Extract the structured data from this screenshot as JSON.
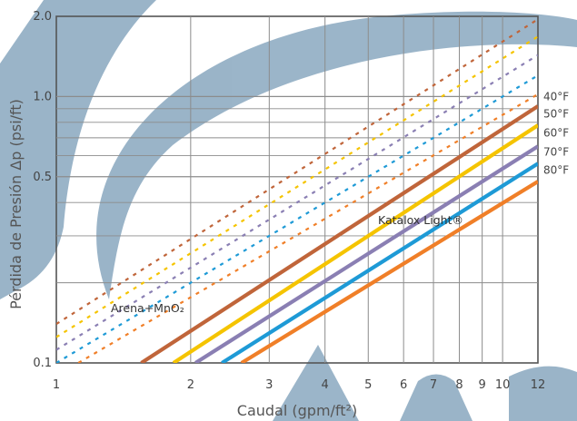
{
  "chart_data": {
    "type": "line",
    "title": "",
    "xlabel": "Caudal (gpm/ft²)",
    "ylabel": "Pérdida de Presión Δp (psi/ft)",
    "x_scale": "log",
    "y_scale": "log",
    "xlim": [
      1,
      12
    ],
    "ylim": [
      0.1,
      2.0
    ],
    "grid": true,
    "x_ticks": [
      1,
      2,
      3,
      4,
      5,
      6,
      7,
      8,
      9,
      10,
      12
    ],
    "x_tick_labels": [
      "1",
      "2",
      "3",
      "4",
      "5",
      "6",
      "7",
      "8",
      "9",
      "10",
      "12"
    ],
    "y_ticks": [
      0.1,
      0.5,
      1.0,
      2.0
    ],
    "y_tick_labels": [
      "0.1",
      "0.5",
      "1.0",
      "2.0"
    ],
    "legend_placement": "right",
    "annotations": {
      "solid": "Katalox Light®",
      "dotted": "Arena+MnO₂"
    },
    "series": [
      {
        "name": "40°F",
        "color": "#c0653a",
        "solid": {
          "x": [
            1.55,
            12
          ],
          "y": [
            0.1,
            0.92
          ]
        },
        "dotted": {
          "x": [
            1,
            12
          ],
          "y": [
            0.14,
            1.95
          ]
        }
      },
      {
        "name": "50°F",
        "color": "#f5c400",
        "solid": {
          "x": [
            1.83,
            12
          ],
          "y": [
            0.1,
            0.78
          ]
        },
        "dotted": {
          "x": [
            1,
            12
          ],
          "y": [
            0.125,
            1.68
          ]
        }
      },
      {
        "name": "60°F",
        "color": "#8a7fb3",
        "solid": {
          "x": [
            2.05,
            12
          ],
          "y": [
            0.1,
            0.65
          ]
        },
        "dotted": {
          "x": [
            1,
            12
          ],
          "y": [
            0.112,
            1.43
          ]
        }
      },
      {
        "name": "70°F",
        "color": "#1e9ad6",
        "solid": {
          "x": [
            2.35,
            12
          ],
          "y": [
            0.1,
            0.56
          ]
        },
        "dotted": {
          "x": [
            1,
            12
          ],
          "y": [
            0.1,
            1.2
          ]
        }
      },
      {
        "name": "80°F",
        "color": "#f07f28",
        "solid": {
          "x": [
            2.6,
            12
          ],
          "y": [
            0.1,
            0.48
          ]
        },
        "dotted": {
          "x": [
            1.12,
            12
          ],
          "y": [
            0.1,
            1.02
          ]
        }
      }
    ],
    "legend_y": [
      1.0,
      0.86,
      0.73,
      0.62,
      0.53
    ]
  }
}
